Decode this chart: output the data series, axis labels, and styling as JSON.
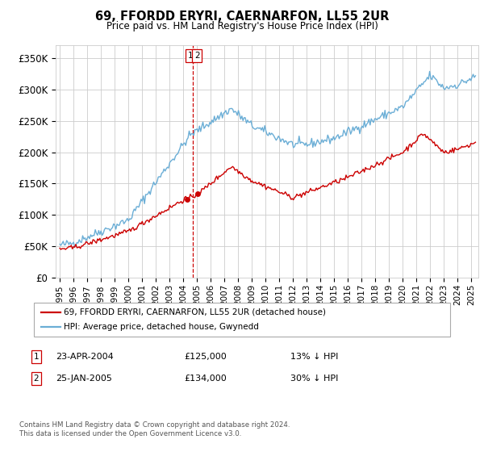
{
  "title": "69, FFORDD ERYRI, CAERNARFON, LL55 2UR",
  "subtitle": "Price paid vs. HM Land Registry's House Price Index (HPI)",
  "ylabel_ticks": [
    "£0",
    "£50K",
    "£100K",
    "£150K",
    "£200K",
    "£250K",
    "£300K",
    "£350K"
  ],
  "ytick_values": [
    0,
    50000,
    100000,
    150000,
    200000,
    250000,
    300000,
    350000
  ],
  "ylim": [
    0,
    370000
  ],
  "hpi_color": "#6baed6",
  "price_color": "#cc0000",
  "dashed_line_color": "#cc0000",
  "grid_color": "#cccccc",
  "background_color": "#ffffff",
  "legend_label_red": "69, FFORDD ERYRI, CAERNARFON, LL55 2UR (detached house)",
  "legend_label_blue": "HPI: Average price, detached house, Gwynedd",
  "transaction1_date": "23-APR-2004",
  "transaction1_price": "£125,000",
  "transaction1_pct": "13% ↓ HPI",
  "transaction2_date": "25-JAN-2005",
  "transaction2_price": "£134,000",
  "transaction2_pct": "30% ↓ HPI",
  "footer_line1": "Contains HM Land Registry data © Crown copyright and database right 2024.",
  "footer_line2": "This data is licensed under the Open Government Licence v3.0.",
  "transaction1_x": 2004.31,
  "transaction1_y": 125000,
  "transaction2_x": 2005.07,
  "transaction2_y": 134000,
  "vline_x": 2004.69,
  "xlim_left": 1994.7,
  "xlim_right": 2025.5
}
